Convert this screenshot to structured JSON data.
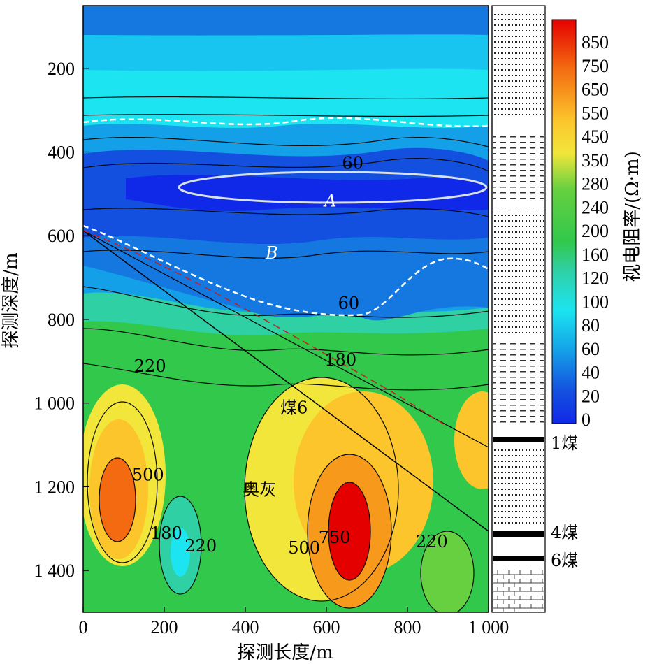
{
  "chart_data": {
    "type": "heatmap",
    "title": "",
    "xlabel": "探测长度/m",
    "ylabel": "探测深度/m",
    "xlim": [
      0,
      1000
    ],
    "ylim": [
      1500,
      50
    ],
    "x_ticks": [
      "0",
      "200",
      "400",
      "600",
      "800",
      "1 000"
    ],
    "x_tick_values": [
      0,
      200,
      400,
      600,
      800,
      1000
    ],
    "y_ticks": [
      "200",
      "400",
      "600",
      "800",
      "1 000",
      "1 200",
      "1 400"
    ],
    "y_tick_values": [
      200,
      400,
      600,
      800,
      1000,
      1200,
      1400
    ],
    "colorbar": {
      "label": "视电阻率/(Ω·m)",
      "tick_labels": [
        "850",
        "750",
        "650",
        "550",
        "450",
        "350",
        "280",
        "240",
        "200",
        "160",
        "120",
        "100",
        "80",
        "60",
        "40",
        "20",
        "0"
      ],
      "colors": [
        "#e50000",
        "#ee3300",
        "#f36a10",
        "#f79a1c",
        "#fcc52c",
        "#f2e63a",
        "#bde844",
        "#66d040",
        "#31c84c",
        "#2fd0a4",
        "#2fd4c8",
        "#1ce4f0",
        "#18c4f0",
        "#14a0e8",
        "#1478e0",
        "#1450e0",
        "#1028e8"
      ]
    },
    "annotations": {
      "contour_labels": [
        {
          "text": "60",
          "x": 665,
          "y": 440
        },
        {
          "text": "60",
          "x": 655,
          "y": 775
        },
        {
          "text": "180",
          "x": 635,
          "y": 910
        },
        {
          "text": "220",
          "x": 165,
          "y": 925
        },
        {
          "text": "500",
          "x": 160,
          "y": 1185
        },
        {
          "text": "180",
          "x": 205,
          "y": 1325
        },
        {
          "text": "220",
          "x": 290,
          "y": 1355
        },
        {
          "text": "500",
          "x": 545,
          "y": 1360
        },
        {
          "text": "750",
          "x": 620,
          "y": 1335
        },
        {
          "text": "220",
          "x": 860,
          "y": 1345
        }
      ],
      "zone_labels": [
        {
          "text": "A",
          "x": 610,
          "y": 530
        },
        {
          "text": "B",
          "x": 465,
          "y": 655
        },
        {
          "text": "煤6",
          "x": 520,
          "y": 1025
        },
        {
          "text": "奥灰",
          "x": 435,
          "y": 1220
        }
      ],
      "coal_seams": [
        "1煤",
        "4煤",
        "6煤"
      ]
    },
    "grid": false
  }
}
